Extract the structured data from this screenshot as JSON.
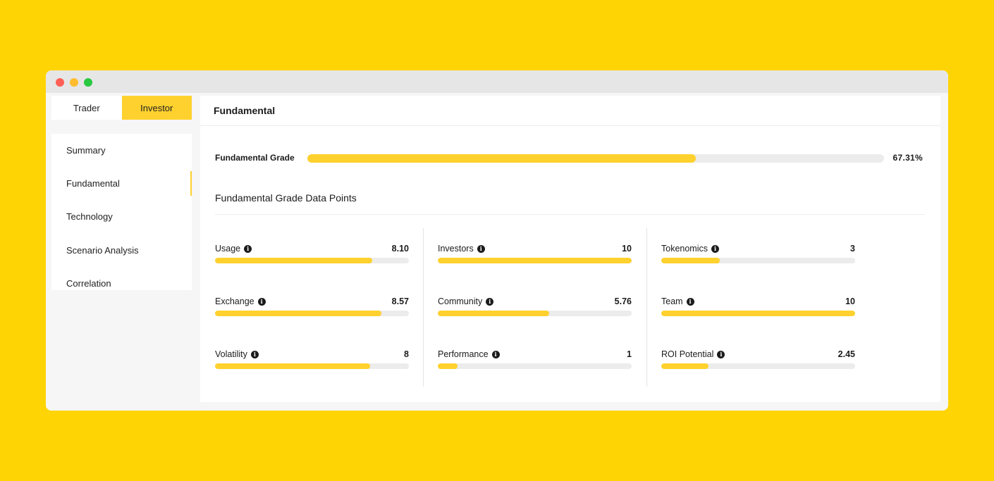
{
  "tabs": [
    {
      "label": "Trader",
      "active": false
    },
    {
      "label": "Investor",
      "active": true
    }
  ],
  "sidebar": {
    "items": [
      {
        "label": "Summary",
        "active": false
      },
      {
        "label": "Fundamental",
        "active": true
      },
      {
        "label": "Technology",
        "active": false
      },
      {
        "label": "Scenario Analysis",
        "active": false
      },
      {
        "label": "Correlation",
        "active": false
      }
    ]
  },
  "panel": {
    "title": "Fundamental",
    "grade": {
      "label": "Fundamental Grade",
      "value_text": "67.31%",
      "percent": 67.31
    },
    "datapoints_title": "Fundamental Grade Data Points",
    "metrics": [
      {
        "label": "Usage",
        "value": "8.10",
        "score": 8.1
      },
      {
        "label": "Investors",
        "value": "10",
        "score": 10
      },
      {
        "label": "Tokenomics",
        "value": "3",
        "score": 3
      },
      {
        "label": "Exchange",
        "value": "8.57",
        "score": 8.57
      },
      {
        "label": "Community",
        "value": "5.76",
        "score": 5.76
      },
      {
        "label": "Team",
        "value": "10",
        "score": 10
      },
      {
        "label": "Volatility",
        "value": "8",
        "score": 8
      },
      {
        "label": "Performance",
        "value": "1",
        "score": 1
      },
      {
        "label": "ROI Potential",
        "value": "2.45",
        "score": 2.45
      }
    ],
    "score_max": 10
  },
  "colors": {
    "accent": "#FFD12E",
    "background": "#FFD404",
    "track": "#ECECEC"
  }
}
